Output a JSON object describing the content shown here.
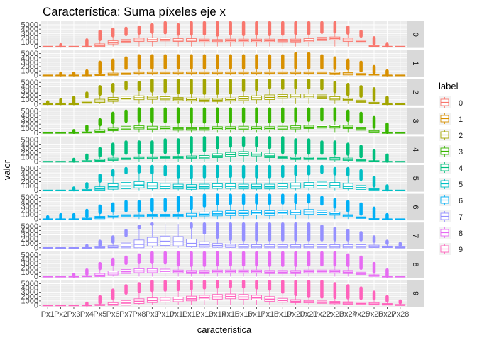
{
  "chart_data": {
    "type": "boxplot",
    "title": "Característica: Suma píxeles eje x",
    "xlabel": "caracteristica",
    "ylabel": "valor",
    "ylim": [
      0,
      5500
    ],
    "y_ticks": [
      0,
      1000,
      2000,
      3000,
      4000,
      5000
    ],
    "y_tick_labels": [
      "0",
      "1000",
      "2000",
      "3000",
      "4000",
      "5000"
    ],
    "categories": [
      "Px1",
      "Px2",
      "Px3",
      "Px4",
      "Px5",
      "Px6",
      "Px7",
      "Px8",
      "Px9",
      "Px10",
      "Px11",
      "Px12",
      "Px13",
      "Px14",
      "Px15",
      "Px16",
      "Px17",
      "Px18",
      "Px19",
      "Px20",
      "Px21",
      "Px22",
      "Px23",
      "Px24",
      "Px25",
      "Px26",
      "Px27",
      "Px28"
    ],
    "facet_by": "label",
    "legend": {
      "title": "label",
      "position": "right",
      "items": [
        "0",
        "1",
        "2",
        "3",
        "4",
        "5",
        "6",
        "7",
        "8",
        "9"
      ]
    },
    "colors": [
      "#F8766D",
      "#D89000",
      "#A3A500",
      "#39B600",
      "#00BF7D",
      "#00BFC4",
      "#00B0F6",
      "#9590FF",
      "#E76BF3",
      "#FF62BC"
    ],
    "series": [
      {
        "name": "0",
        "medians": [
          0,
          0,
          0,
          0,
          250,
          900,
          1200,
          1500,
          1550,
          1600,
          1450,
          1450,
          1300,
          1250,
          1300,
          1350,
          1300,
          1350,
          1250,
          1250,
          1400,
          1700,
          1800,
          1500,
          1200,
          0,
          0,
          0
        ],
        "q3": [
          0,
          0,
          0,
          0,
          600,
          1300,
          1600,
          1900,
          2000,
          2000,
          1800,
          1800,
          1700,
          1600,
          1700,
          1700,
          1700,
          1700,
          1650,
          1700,
          1800,
          2100,
          2200,
          1900,
          1500,
          200,
          0,
          0
        ],
        "max": [
          0,
          400,
          0,
          1500,
          3500,
          4000,
          4200,
          4500,
          5000,
          5500,
          5000,
          5500,
          5500,
          5500,
          5500,
          5500,
          5500,
          5500,
          5500,
          5500,
          5500,
          5500,
          5500,
          4500,
          3500,
          2000,
          500,
          0
        ]
      },
      {
        "name": "1",
        "medians": [
          0,
          0,
          0,
          0,
          0,
          200,
          400,
          500,
          500,
          500,
          500,
          500,
          500,
          500,
          500,
          500,
          500,
          500,
          500,
          500,
          500,
          500,
          400,
          300,
          200,
          100,
          0,
          0
        ],
        "q3": [
          0,
          0,
          0,
          0,
          200,
          500,
          700,
          800,
          800,
          800,
          800,
          800,
          800,
          800,
          800,
          800,
          800,
          800,
          800,
          800,
          800,
          800,
          700,
          600,
          400,
          200,
          0,
          0
        ],
        "max": [
          0,
          500,
          500,
          1000,
          3000,
          3500,
          4000,
          4500,
          4500,
          4500,
          4500,
          4500,
          4500,
          4500,
          4500,
          4500,
          4500,
          4500,
          4500,
          5000,
          5000,
          4500,
          4000,
          3500,
          3000,
          2000,
          1000,
          0
        ]
      },
      {
        "name": "2",
        "medians": [
          0,
          0,
          0,
          400,
          700,
          1000,
          1200,
          1400,
          1400,
          1300,
          1100,
          1000,
          900,
          900,
          1000,
          1200,
          1400,
          1500,
          1700,
          1800,
          1800,
          1600,
          1300,
          1000,
          600,
          200,
          0,
          0
        ],
        "q3": [
          0,
          0,
          0,
          700,
          1100,
          1500,
          1800,
          1900,
          1800,
          1700,
          1500,
          1400,
          1300,
          1300,
          1400,
          1700,
          1900,
          2100,
          2200,
          2300,
          2300,
          2100,
          1700,
          1300,
          900,
          400,
          0,
          0
        ],
        "max": [
          500,
          1000,
          1500,
          2500,
          4000,
          4500,
          5000,
          5000,
          5500,
          5500,
          5500,
          5500,
          5500,
          5500,
          5500,
          5500,
          5500,
          5500,
          5500,
          5500,
          5500,
          5500,
          5000,
          4500,
          4000,
          3500,
          1500,
          0
        ]
      },
      {
        "name": "3",
        "medians": [
          0,
          0,
          0,
          0,
          300,
          800,
          1100,
          1200,
          1100,
          1000,
          900,
          900,
          900,
          1000,
          1000,
          1100,
          1000,
          1000,
          1100,
          1200,
          1300,
          1400,
          1400,
          1300,
          900,
          200,
          0,
          0
        ],
        "q3": [
          0,
          0,
          0,
          200,
          700,
          1200,
          1500,
          1600,
          1500,
          1400,
          1300,
          1300,
          1300,
          1400,
          1400,
          1500,
          1400,
          1400,
          1500,
          1600,
          1700,
          1800,
          1800,
          1700,
          1300,
          500,
          0,
          0
        ],
        "max": [
          0,
          0,
          500,
          1500,
          3000,
          4500,
          5000,
          5500,
          5500,
          5500,
          5500,
          5500,
          5500,
          5500,
          5500,
          5500,
          5500,
          5500,
          5500,
          5500,
          5500,
          5500,
          5500,
          5000,
          4500,
          3500,
          2000,
          0
        ]
      },
      {
        "name": "4",
        "medians": [
          0,
          0,
          0,
          0,
          200,
          500,
          700,
          800,
          800,
          900,
          900,
          1000,
          1000,
          1300,
          1600,
          1800,
          1700,
          1300,
          900,
          700,
          700,
          700,
          600,
          500,
          300,
          100,
          0,
          0
        ],
        "q3": [
          0,
          0,
          0,
          200,
          500,
          800,
          1000,
          1100,
          1100,
          1200,
          1200,
          1300,
          1400,
          1800,
          2100,
          2300,
          2200,
          1800,
          1200,
          1000,
          1000,
          1000,
          900,
          800,
          500,
          200,
          0,
          0
        ],
        "max": [
          0,
          0,
          500,
          1500,
          3000,
          4000,
          4500,
          4500,
          4500,
          5000,
          5000,
          5500,
          5500,
          5500,
          5500,
          5500,
          5500,
          5500,
          5500,
          5000,
          5000,
          4500,
          4500,
          4000,
          3500,
          2500,
          1500,
          0
        ]
      },
      {
        "name": "5",
        "medians": [
          0,
          0,
          0,
          0,
          300,
          800,
          1000,
          1200,
          1000,
          900,
          800,
          700,
          800,
          900,
          900,
          800,
          800,
          800,
          900,
          1000,
          1100,
          1100,
          1100,
          900,
          600,
          200,
          0,
          0
        ],
        "q3": [
          0,
          0,
          0,
          200,
          800,
          1500,
          1800,
          2000,
          1800,
          1600,
          1400,
          1300,
          1400,
          1500,
          1500,
          1400,
          1400,
          1400,
          1500,
          1700,
          1800,
          1900,
          1800,
          1600,
          1100,
          400,
          0,
          0
        ],
        "max": [
          0,
          0,
          500,
          1500,
          3500,
          4500,
          5000,
          5500,
          5500,
          5500,
          5500,
          5500,
          5500,
          5500,
          5500,
          5500,
          5500,
          5500,
          5500,
          5500,
          5500,
          5500,
          5000,
          5000,
          4500,
          3000,
          1000,
          0
        ]
      },
      {
        "name": "6",
        "medians": [
          0,
          0,
          0,
          0,
          300,
          600,
          700,
          700,
          800,
          800,
          800,
          900,
          1100,
          1200,
          1300,
          1300,
          1400,
          1300,
          1400,
          1500,
          1600,
          1500,
          1200,
          700,
          300,
          0,
          0,
          0
        ],
        "q3": [
          0,
          0,
          0,
          200,
          600,
          900,
          1000,
          1000,
          1100,
          1100,
          1100,
          1300,
          1600,
          1800,
          1900,
          1900,
          2000,
          1900,
          2000,
          2100,
          2200,
          2000,
          1600,
          1000,
          500,
          100,
          0,
          0
        ],
        "max": [
          500,
          1000,
          1000,
          2000,
          3000,
          3500,
          4000,
          4000,
          4500,
          4500,
          5000,
          5000,
          5500,
          5500,
          5500,
          5500,
          5500,
          5500,
          5500,
          5500,
          5500,
          5000,
          4500,
          4000,
          3500,
          2500,
          1000,
          0
        ]
      },
      {
        "name": "7",
        "medians": [
          0,
          0,
          0,
          0,
          0,
          100,
          300,
          800,
          1300,
          1500,
          1400,
          1000,
          700,
          500,
          400,
          300,
          300,
          300,
          300,
          300,
          300,
          300,
          300,
          300,
          300,
          300,
          200,
          0
        ],
        "q3": [
          0,
          0,
          0,
          0,
          200,
          500,
          1100,
          1800,
          2400,
          2700,
          2600,
          2000,
          1400,
          1000,
          800,
          700,
          700,
          700,
          700,
          700,
          700,
          700,
          700,
          700,
          700,
          600,
          400,
          200
        ],
        "max": [
          0,
          0,
          0,
          500,
          1500,
          2500,
          4000,
          5000,
          5500,
          5500,
          5500,
          5500,
          5500,
          5500,
          5500,
          5500,
          5500,
          5500,
          5500,
          5500,
          5500,
          5000,
          4500,
          4000,
          3500,
          2500,
          1500,
          1000
        ]
      },
      {
        "name": "8",
        "medians": [
          0,
          0,
          0,
          0,
          300,
          800,
          1100,
          1300,
          1300,
          1200,
          1100,
          1000,
          1000,
          1100,
          1100,
          1100,
          1100,
          1000,
          1000,
          1000,
          1100,
          1100,
          1100,
          1000,
          700,
          200,
          0,
          0
        ],
        "q3": [
          0,
          0,
          0,
          200,
          700,
          1300,
          1600,
          1800,
          1800,
          1700,
          1500,
          1400,
          1400,
          1500,
          1500,
          1500,
          1500,
          1400,
          1400,
          1400,
          1500,
          1500,
          1500,
          1400,
          1000,
          400,
          0,
          0
        ],
        "max": [
          0,
          0,
          500,
          1500,
          3000,
          4000,
          4500,
          5000,
          5500,
          5500,
          5500,
          5500,
          5500,
          5500,
          5500,
          5500,
          5500,
          5500,
          5500,
          5500,
          5500,
          5500,
          5500,
          5000,
          4500,
          3000,
          1500,
          0
        ]
      },
      {
        "name": "9",
        "medians": [
          0,
          0,
          0,
          0,
          0,
          200,
          500,
          900,
          1100,
          1200,
          1300,
          1500,
          1700,
          1900,
          2000,
          1900,
          1700,
          1400,
          1100,
          900,
          800,
          700,
          600,
          500,
          400,
          300,
          200,
          0
        ],
        "q3": [
          0,
          0,
          0,
          0,
          200,
          600,
          1100,
          1500,
          1700,
          1800,
          1900,
          2100,
          2300,
          2500,
          2600,
          2500,
          2300,
          2000,
          1600,
          1300,
          1100,
          1000,
          900,
          800,
          700,
          600,
          400,
          200
        ],
        "max": [
          0,
          0,
          0,
          500,
          2000,
          3500,
          4500,
          5000,
          5500,
          5500,
          5500,
          5500,
          5500,
          5500,
          5500,
          5500,
          5500,
          5500,
          5500,
          5500,
          5500,
          5500,
          5000,
          4500,
          4000,
          3000,
          2000,
          1000
        ]
      }
    ]
  }
}
